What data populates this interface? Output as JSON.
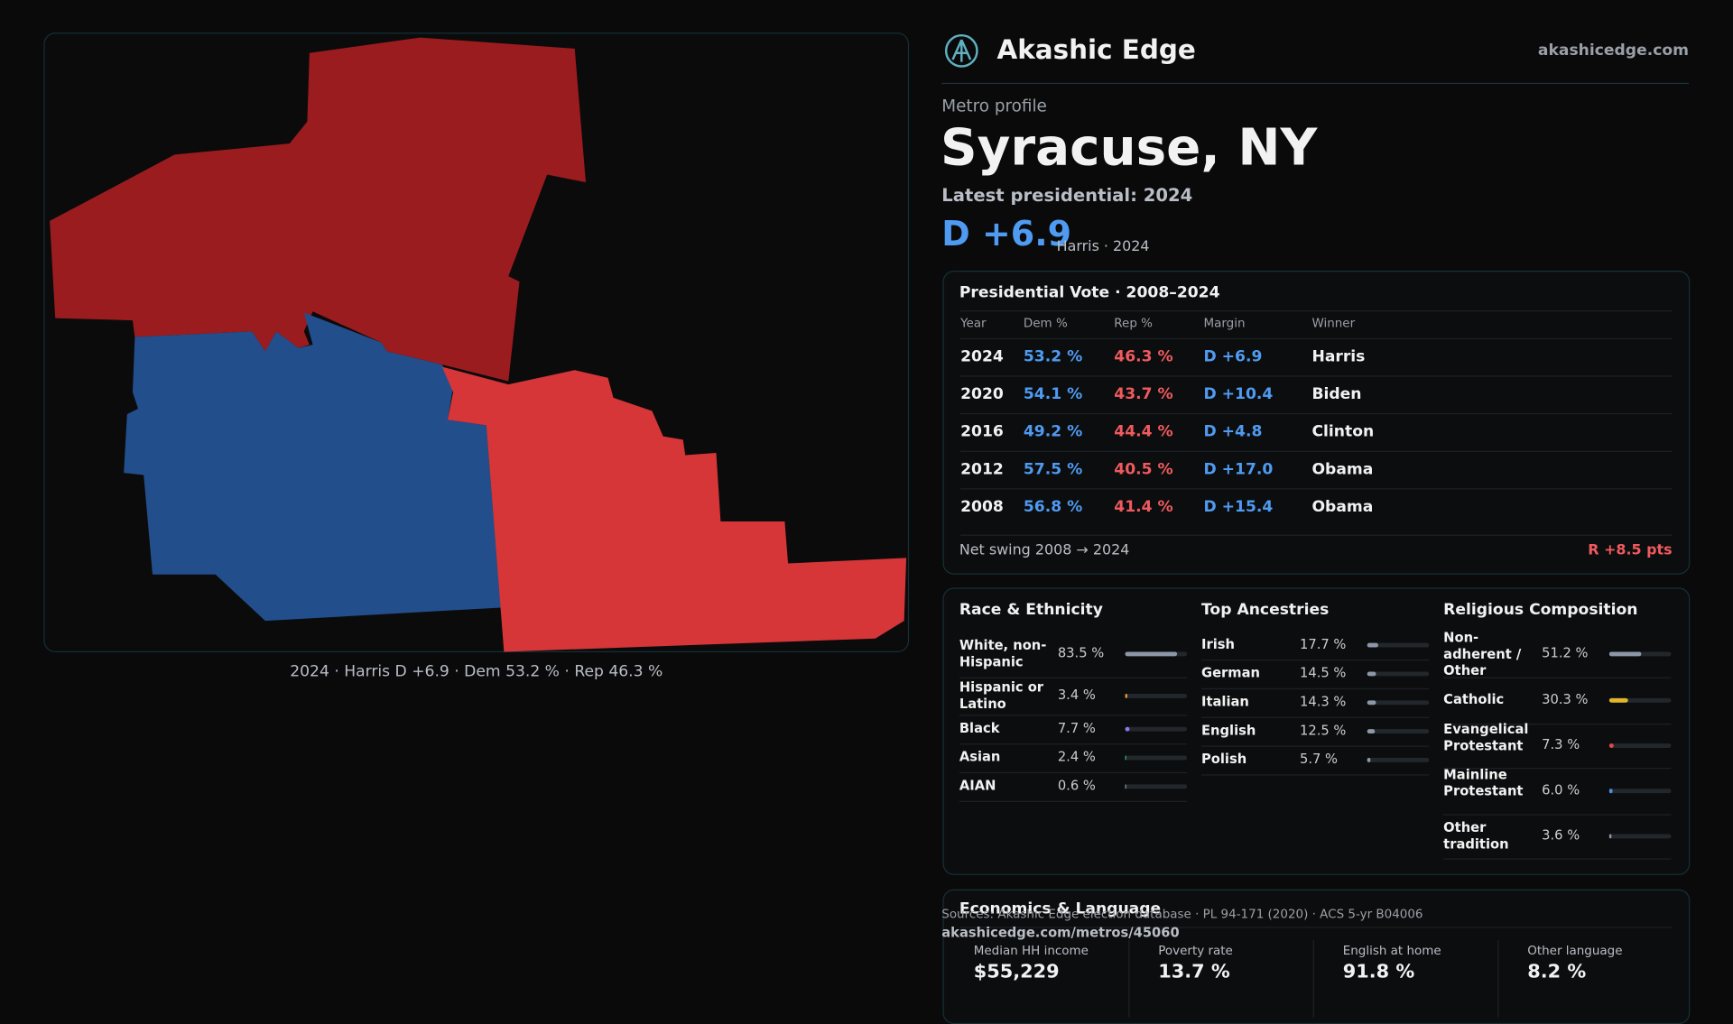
{
  "header": {
    "brand": "Akashic Edge",
    "site": "akashicedge.com"
  },
  "map": {
    "caption": "2024 · Harris D +6.9 · Dem 53.2 % · Rep 46.3 %"
  },
  "metro": {
    "kicker": "Metro profile",
    "name": "Syracuse, NY",
    "latest": "Latest presidential: 2024",
    "margin": "D +6.9",
    "margin_note": "Harris · 2024"
  },
  "presidential": {
    "title": "Presidential Vote · 2008–2024",
    "columns": [
      "Year",
      "Dem %",
      "Rep %",
      "Margin",
      "Winner"
    ],
    "rows": [
      [
        "2024",
        "53.2 %",
        "46.3 %",
        "D +6.9",
        "Harris"
      ],
      [
        "2020",
        "54.1 %",
        "43.7 %",
        "D +10.4",
        "Biden"
      ],
      [
        "2016",
        "49.2 %",
        "44.4 %",
        "D +4.8",
        "Clinton"
      ],
      [
        "2012",
        "57.5 %",
        "40.5 %",
        "D +17.0",
        "Obama"
      ],
      [
        "2008",
        "56.8 %",
        "41.4 %",
        "D +15.4",
        "Obama"
      ]
    ],
    "footer_label": "Net swing 2008 → 2024",
    "footer_value": "R +8.5 pts"
  },
  "race": {
    "title": "Race & Ethnicity",
    "items": [
      {
        "name": "White, non-Hispanic",
        "value": 83.5,
        "label": "83.5 %",
        "color": "#8d97a8"
      },
      {
        "name": "Hispanic or Latino",
        "value": 3.4,
        "label": "3.4 %",
        "color": "#e0982f"
      },
      {
        "name": "Black",
        "value": 7.7,
        "label": "7.7 %",
        "color": "#8c7ae6"
      },
      {
        "name": "Asian",
        "value": 2.4,
        "label": "2.4 %",
        "color": "#3aa89a"
      },
      {
        "name": "AIAN",
        "value": 0.6,
        "label": "0.6 %",
        "color": "#8d97a8"
      }
    ]
  },
  "ancestries": {
    "title": "Top Ancestries",
    "items": [
      {
        "name": "Irish",
        "value": 17.7,
        "label": "17.7 %",
        "color": "#8d97a8"
      },
      {
        "name": "German",
        "value": 14.5,
        "label": "14.5 %",
        "color": "#8d97a8"
      },
      {
        "name": "Italian",
        "value": 14.3,
        "label": "14.3 %",
        "color": "#8d97a8"
      },
      {
        "name": "English",
        "value": 12.5,
        "label": "12.5 %",
        "color": "#8d97a8"
      },
      {
        "name": "Polish",
        "value": 5.7,
        "label": "5.7 %",
        "color": "#8d97a8"
      }
    ]
  },
  "religion": {
    "title": "Religious Composition",
    "items": [
      {
        "name": "Non-adherent / Other",
        "value": 51.2,
        "label": "51.2 %",
        "color": "#8d97a8"
      },
      {
        "name": "Catholic",
        "value": 30.3,
        "label": "30.3 %",
        "color": "#e2b52c"
      },
      {
        "name": "Evangelical Protestant",
        "value": 7.3,
        "label": "7.3 %",
        "color": "#e0494b"
      },
      {
        "name": "Mainline Protestant",
        "value": 6.0,
        "label": "6.0 %",
        "color": "#4f8fe0"
      },
      {
        "name": "Other tradition",
        "value": 3.6,
        "label": "3.6 %",
        "color": "#8d97a8"
      }
    ]
  },
  "economics": {
    "title": "Economics & Language",
    "items": [
      {
        "name": "Median HH income",
        "value": "$55,229"
      },
      {
        "name": "Poverty rate",
        "value": "13.7 %"
      },
      {
        "name": "English at home",
        "value": "91.8 %"
      },
      {
        "name": "Other language",
        "value": "8.2 %"
      }
    ]
  },
  "footer": {
    "sources": "Sources: Akashic Edge election database · PL 94-171 (2020) · ACS 5-yr B04006",
    "url": "akashicedge.com/metros/45060"
  }
}
